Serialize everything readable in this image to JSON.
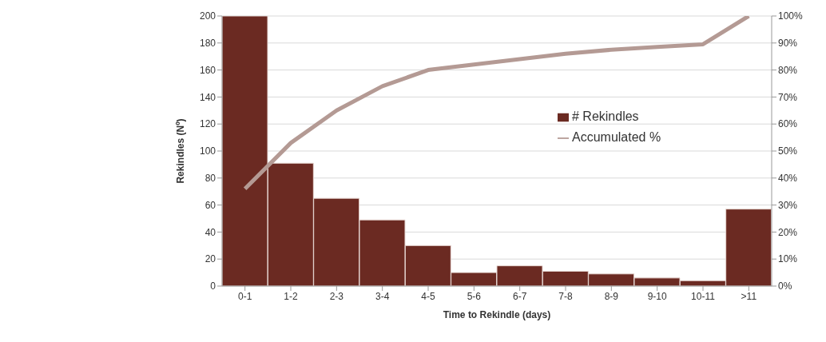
{
  "chart_data": {
    "type": "bar",
    "xlabel": "Time to Rekindle (days)",
    "ylabel": "Rekindles (Nº)",
    "categories": [
      "0-1",
      "1-2",
      "2-3",
      "3-4",
      "4-5",
      "5-6",
      "6-7",
      "7-8",
      "8-9",
      "9-10",
      "10-11",
      ">11"
    ],
    "series": [
      {
        "name": "# Rekindles",
        "color": "#6b2a22",
        "values": [
          200,
          91,
          65,
          49,
          30,
          10,
          15,
          11,
          9,
          6,
          4,
          57
        ]
      },
      {
        "name": "Accumulated %",
        "type": "line",
        "axis": "y2",
        "color": "#b49a94",
        "values": [
          36,
          53,
          65,
          74,
          80,
          82,
          84,
          86,
          87.5,
          88.5,
          89.5,
          100
        ]
      }
    ],
    "ylim": [
      0,
      200
    ],
    "yticks": [
      0,
      20,
      40,
      60,
      80,
      100,
      120,
      140,
      160,
      180,
      200
    ],
    "y2lim": [
      0,
      100
    ],
    "y2ticks": [
      {
        "value": 0,
        "label": "0%"
      },
      {
        "value": 10,
        "label": "10%"
      },
      {
        "value": 20,
        "label": "20%"
      },
      {
        "value": 30,
        "label": "30%"
      },
      {
        "value": 40,
        "label": "40%"
      },
      {
        "value": 50,
        "label": "50%"
      },
      {
        "value": 60,
        "label": "60%"
      },
      {
        "value": 70,
        "label": "70%"
      },
      {
        "value": 80,
        "label": "80%"
      },
      {
        "value": 90,
        "label": "90%"
      },
      {
        "value": 100,
        "label": "100%"
      }
    ],
    "grid": "y",
    "legend": "right",
    "marker": "none",
    "line_style": "solid"
  }
}
